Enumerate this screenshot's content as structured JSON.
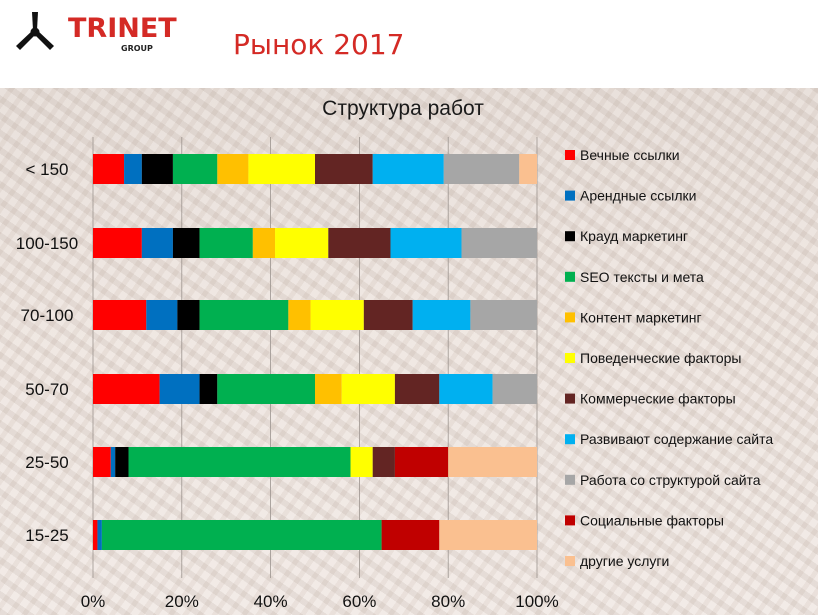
{
  "header": {
    "logo_text": "TRINET",
    "logo_sub": "GROUP",
    "slide_title": "Рынок 2017"
  },
  "colors": {
    "brand": "#d42a25"
  },
  "chart_data": {
    "type": "bar",
    "orientation": "horizontal",
    "stacked": true,
    "title": "Структура работ",
    "xlabel": "",
    "ylabel": "",
    "xlim": [
      0,
      100
    ],
    "xticks": [
      0,
      20,
      40,
      60,
      80,
      100
    ],
    "xtick_labels": [
      "0%",
      "20%",
      "40%",
      "60%",
      "80%",
      "100%"
    ],
    "grid": "vertical",
    "legend_position": "right",
    "categories": [
      "< 150",
      "100-150",
      "70-100",
      "50-70",
      "25-50",
      "15-25"
    ],
    "series": [
      {
        "name": "Вечные ссылки",
        "color": "#ff0000",
        "values": [
          7,
          11,
          12,
          15,
          4,
          1
        ]
      },
      {
        "name": "Арендные ссылки",
        "color": "#0070c0",
        "values": [
          4,
          7,
          7,
          9,
          1,
          1
        ]
      },
      {
        "name": "Крауд маркетинг",
        "color": "#000000",
        "values": [
          7,
          6,
          5,
          4,
          3,
          0
        ]
      },
      {
        "name": "SEO тексты и мета",
        "color": "#00b050",
        "values": [
          10,
          12,
          20,
          22,
          50,
          63
        ]
      },
      {
        "name": "Контент маркетинг",
        "color": "#ffc000",
        "values": [
          7,
          5,
          5,
          6,
          0,
          0
        ]
      },
      {
        "name": "Поведенческие факторы",
        "color": "#ffff00",
        "values": [
          15,
          12,
          12,
          12,
          5,
          0
        ]
      },
      {
        "name": "Коммерческие факторы",
        "color": "#632523",
        "values": [
          13,
          14,
          11,
          10,
          5,
          0
        ]
      },
      {
        "name": "Развивают содержание сайта",
        "color": "#00b0f0",
        "values": [
          16,
          16,
          13,
          12,
          0,
          0
        ]
      },
      {
        "name": "Работа со структурой сайта",
        "color": "#a6a6a6",
        "values": [
          17,
          17,
          15,
          10,
          0,
          0
        ]
      },
      {
        "name": "Социальные факторы",
        "color": "#c00000",
        "values": [
          0,
          0,
          0,
          0,
          12,
          13
        ]
      },
      {
        "name": "другие услуги",
        "color": "#fac090",
        "values": [
          4,
          0,
          0,
          0,
          20,
          22
        ]
      }
    ]
  }
}
